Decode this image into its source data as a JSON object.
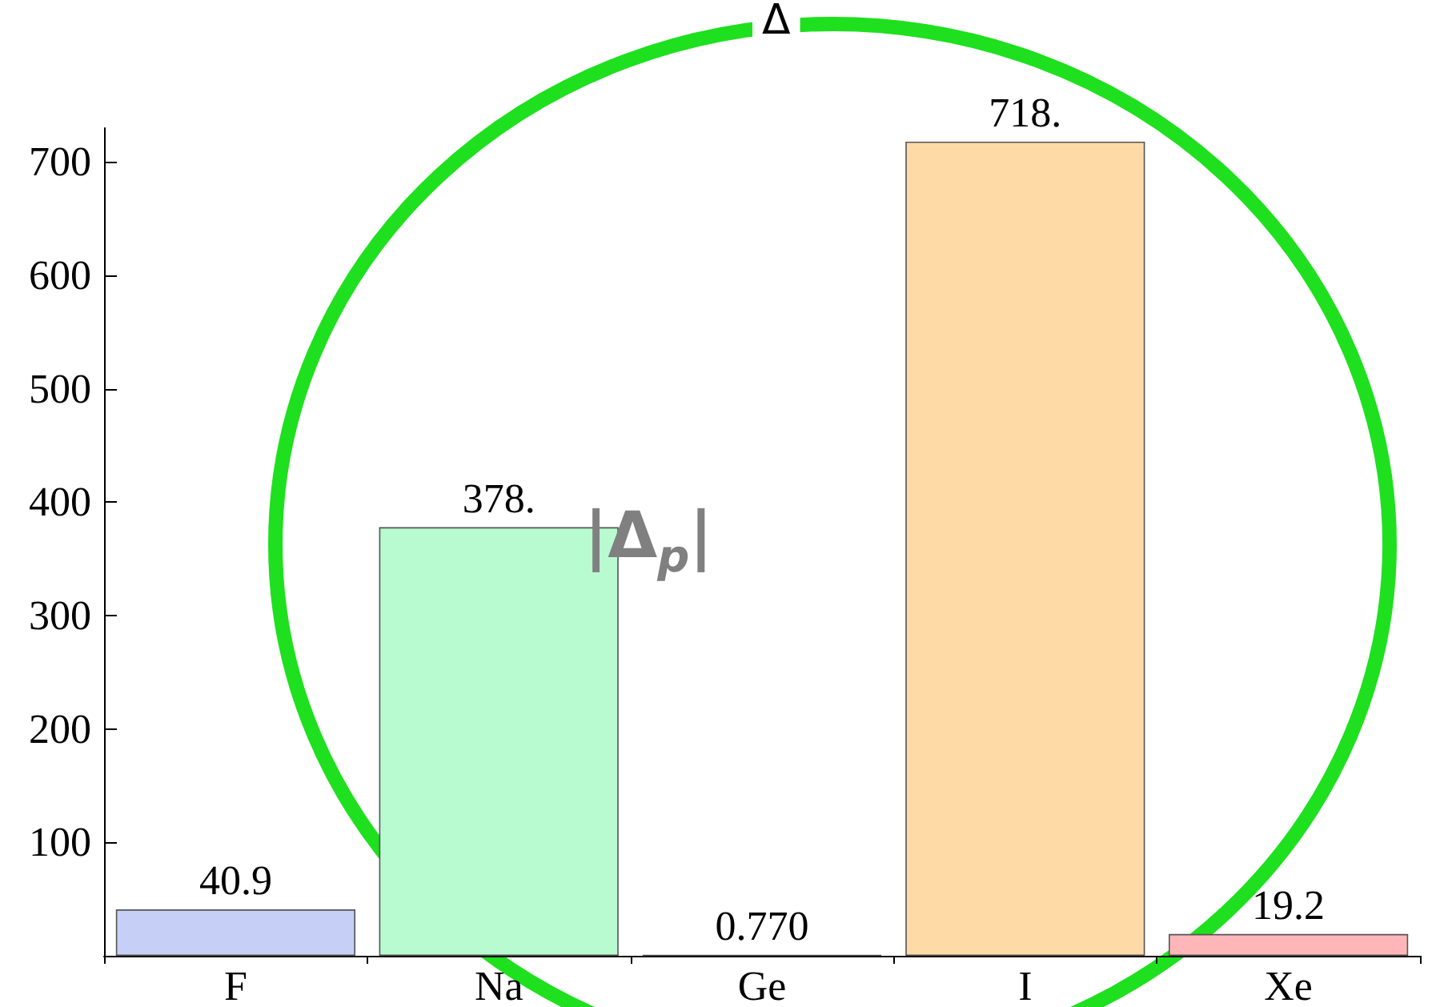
{
  "chart_data": {
    "type": "bar",
    "title": "Δ",
    "categories": [
      "F",
      "Na",
      "Ge",
      "I",
      "Xe"
    ],
    "values": [
      40.9,
      378,
      0.77,
      718,
      19.2
    ],
    "value_labels": [
      "40.9",
      "378.",
      "0.770",
      "718.",
      "19.2"
    ],
    "colors": [
      "#c6cff5",
      "#b9fbd1",
      "#555555",
      "#fedaa7",
      "#ffb6b9"
    ],
    "ylim": [
      0,
      730
    ],
    "yticks": [
      100,
      200,
      300,
      400,
      500,
      600,
      700
    ],
    "annotations": [
      "|Δ$_{p}$|"
    ],
    "grid": false
  }
}
